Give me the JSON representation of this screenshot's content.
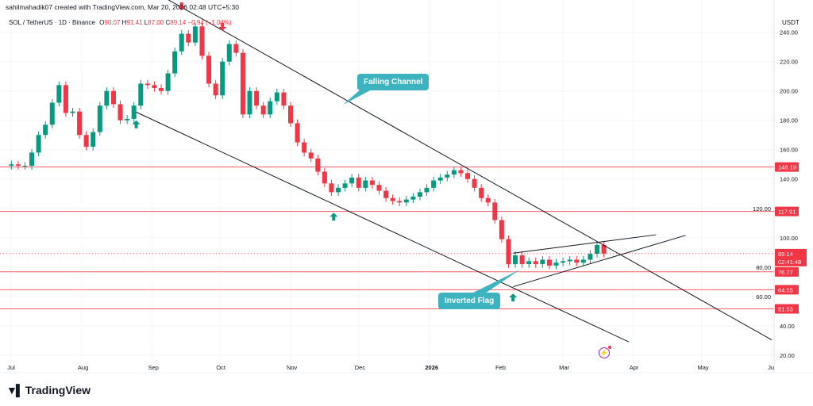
{
  "header": {
    "attribution": "sahilmahadik07 created with TradingView.com, Mar 20, 2026 02:48 UTC+5:30",
    "symbol": "SOL / TetherUS · 1D · Binance",
    "open_label": "O",
    "open": "90.07",
    "high_label": "H",
    "high": "91.41",
    "low_label": "L",
    "low": "87.00",
    "close_label": "C",
    "close": "89.14",
    "change": "−0.94 (−1.04%)"
  },
  "price_unit": "USDT",
  "annotations": {
    "falling_channel": "Falling Channel",
    "inverted_flag": "Inverted Flag"
  },
  "logo_text": "TradingView",
  "countdown": "02:41:48",
  "colors": {
    "up": "#089981",
    "down": "#f23645",
    "level": "#f23645",
    "trendline": "#131722",
    "callout": "#3db3bf"
  },
  "icons": [
    "up-arrow-icon",
    "down-arrow-icon",
    "lightning-icon",
    "tradingview-logo-icon"
  ],
  "chart_data": {
    "type": "candlestick",
    "xlim": [
      "2025-06-26",
      "2026-06-02"
    ],
    "ylim": [
      8,
      262
    ],
    "grid": true,
    "x_ticks": [
      {
        "date": "2025-07-01",
        "label": "Jul"
      },
      {
        "date": "2025-08-01",
        "label": "Aug"
      },
      {
        "date": "2025-09-01",
        "label": "Sep"
      },
      {
        "date": "2025-10-01",
        "label": "Oct"
      },
      {
        "date": "2025-11-01",
        "label": "Nov"
      },
      {
        "date": "2025-12-01",
        "label": "Dec"
      },
      {
        "date": "2026-01-01",
        "label": "2026"
      },
      {
        "date": "2026-02-01",
        "label": "Feb"
      },
      {
        "date": "2026-03-01",
        "label": "Mar"
      },
      {
        "date": "2026-04-01",
        "label": "Apr"
      },
      {
        "date": "2026-05-01",
        "label": "May"
      },
      {
        "date": "2026-06-01",
        "label": "Ju"
      }
    ],
    "y_ticks": [
      "240.00",
      "220.00",
      "200.00",
      "180.00",
      "160.00",
      "140.00",
      "120.00",
      "100.00",
      "80.00",
      "60.00",
      "40.00",
      "20.00"
    ],
    "levels": [
      148.19,
      117.91,
      76.77,
      64.55,
      51.53
    ],
    "level_labels": [
      "148.19",
      "117.91",
      "76.77",
      "64.55",
      "51.53"
    ],
    "last_price": 89.14,
    "last_price_label": "89.14",
    "closes": [
      [
        "2025-07-01",
        150
      ],
      [
        "2025-07-04",
        149
      ],
      [
        "2025-07-07",
        149
      ],
      [
        "2025-07-10",
        158
      ],
      [
        "2025-07-13",
        170
      ],
      [
        "2025-07-16",
        177
      ],
      [
        "2025-07-19",
        192
      ],
      [
        "2025-07-22",
        204
      ],
      [
        "2025-07-25",
        185
      ],
      [
        "2025-07-28",
        186
      ],
      [
        "2025-07-31",
        170
      ],
      [
        "2025-08-03",
        162
      ],
      [
        "2025-08-06",
        172
      ],
      [
        "2025-08-09",
        190
      ],
      [
        "2025-08-12",
        200
      ],
      [
        "2025-08-15",
        191
      ],
      [
        "2025-08-18",
        180
      ],
      [
        "2025-08-21",
        181
      ],
      [
        "2025-08-24",
        190
      ],
      [
        "2025-08-27",
        205
      ],
      [
        "2025-08-30",
        204
      ],
      [
        "2025-09-02",
        202
      ],
      [
        "2025-09-05",
        200
      ],
      [
        "2025-09-08",
        212
      ],
      [
        "2025-09-11",
        227
      ],
      [
        "2025-09-14",
        239
      ],
      [
        "2025-09-17",
        233
      ],
      [
        "2025-09-20",
        244
      ],
      [
        "2025-09-23",
        224
      ],
      [
        "2025-09-26",
        205
      ],
      [
        "2025-09-29",
        197
      ],
      [
        "2025-10-02",
        220
      ],
      [
        "2025-10-05",
        232
      ],
      [
        "2025-10-08",
        226
      ],
      [
        "2025-10-11",
        184
      ],
      [
        "2025-10-14",
        200
      ],
      [
        "2025-10-17",
        190
      ],
      [
        "2025-10-20",
        184
      ],
      [
        "2025-10-23",
        193
      ],
      [
        "2025-10-26",
        199
      ],
      [
        "2025-10-29",
        190
      ],
      [
        "2025-11-01",
        178
      ],
      [
        "2025-11-04",
        165
      ],
      [
        "2025-11-07",
        158
      ],
      [
        "2025-11-10",
        154
      ],
      [
        "2025-11-13",
        145
      ],
      [
        "2025-11-16",
        137
      ],
      [
        "2025-11-19",
        131
      ],
      [
        "2025-11-22",
        134
      ],
      [
        "2025-11-25",
        137
      ],
      [
        "2025-11-28",
        141
      ],
      [
        "2025-12-01",
        134
      ],
      [
        "2025-12-04",
        139
      ],
      [
        "2025-12-07",
        136
      ],
      [
        "2025-12-10",
        132
      ],
      [
        "2025-12-13",
        127
      ],
      [
        "2025-12-16",
        125
      ],
      [
        "2025-12-19",
        124
      ],
      [
        "2025-12-22",
        126
      ],
      [
        "2025-12-25",
        128
      ],
      [
        "2025-12-28",
        131
      ],
      [
        "2025-12-31",
        134
      ],
      [
        "2026-01-03",
        139
      ],
      [
        "2026-01-06",
        141
      ],
      [
        "2026-01-09",
        143
      ],
      [
        "2026-01-12",
        146
      ],
      [
        "2026-01-15",
        144
      ],
      [
        "2026-01-18",
        140
      ],
      [
        "2026-01-21",
        134
      ],
      [
        "2026-01-24",
        127
      ],
      [
        "2026-01-27",
        124
      ],
      [
        "2026-01-30",
        112
      ],
      [
        "2026-02-02",
        99
      ],
      [
        "2026-02-05",
        82
      ],
      [
        "2026-02-08",
        88
      ],
      [
        "2026-02-11",
        82
      ],
      [
        "2026-02-14",
        84
      ],
      [
        "2026-02-17",
        82
      ],
      [
        "2026-02-20",
        85
      ],
      [
        "2026-02-23",
        81
      ],
      [
        "2026-02-26",
        83
      ],
      [
        "2026-03-01",
        84
      ],
      [
        "2026-03-04",
        85
      ],
      [
        "2026-03-07",
        83
      ],
      [
        "2026-03-10",
        85
      ],
      [
        "2026-03-13",
        89
      ],
      [
        "2026-03-16",
        95
      ],
      [
        "2026-03-19",
        89.14
      ]
    ],
    "trendlines": [
      {
        "name": "channel-upper",
        "points": [
          [
            "2025-09-06",
            264
          ],
          [
            "2026-06-01",
            30.3
          ]
        ]
      },
      {
        "name": "channel-lower",
        "points": [
          [
            "2025-08-25",
            185.6
          ],
          [
            "2026-03-30",
            29
          ]
        ]
      },
      {
        "name": "flag-upper",
        "points": [
          [
            "2026-02-07",
            89.5
          ],
          [
            "2026-04-11",
            102
          ]
        ]
      },
      {
        "name": "flag-lower",
        "points": [
          [
            "2026-02-07",
            66.6
          ],
          [
            "2026-04-24",
            101.6
          ]
        ]
      }
    ],
    "markers": [
      {
        "type": "down",
        "date": "2025-09-14",
        "price": 255
      },
      {
        "type": "down",
        "date": "2025-10-02",
        "price": 241
      },
      {
        "type": "up",
        "date": "2025-08-25",
        "price": 180
      },
      {
        "type": "up",
        "date": "2025-11-20",
        "price": 117
      },
      {
        "type": "up",
        "date": "2026-02-07",
        "price": 62
      }
    ]
  }
}
